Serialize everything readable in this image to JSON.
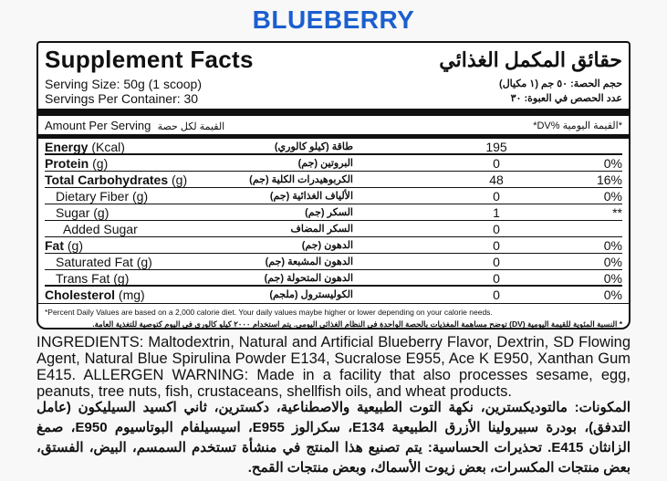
{
  "product_title": "BLUEBERRY",
  "colors": {
    "title": "#1b5fcf",
    "border": "#111111"
  },
  "panel": {
    "title_en": "Supplement Facts",
    "title_ar": "حقائق المكمل الغذائي",
    "serving_size_en": "Serving Size: 50g (1 scoop)",
    "serving_size_ar": "حجم الحصة: ٥٠ جم (١ مكيال)",
    "servings_en": "Servings Per Container: 30",
    "servings_ar": "عدد الحصص في العبوة: ٣٠",
    "amount_en": "Amount Per Serving",
    "amount_ar": "القيمة لكل حصة",
    "dv_header": "*القيمة اليومية %DV*",
    "rows": [
      {
        "name": "Energy",
        "unit": "(Kcal)",
        "ar": "طاقة (كيلو كالوري)",
        "value": "195",
        "dv": ""
      },
      {
        "name": "Protein",
        "unit": "(g)",
        "ar": "البروتين (جم)",
        "value": "0",
        "dv": "0%"
      },
      {
        "name": "Total Carbohydrates",
        "unit": "(g)",
        "ar": "الكربوهيدرات الكلية (جم)",
        "value": "48",
        "dv": "16%"
      },
      {
        "name": "Dietary Fiber (g)",
        "ar": "الألياف الغذائية (جم)",
        "value": "0",
        "dv": "0%"
      },
      {
        "name": "Sugar (g)",
        "ar": "السكر (جم)",
        "value": "1",
        "dv": "**"
      },
      {
        "name": "Added Sugar",
        "ar": "السكر المضاف",
        "value": "0",
        "dv": ""
      },
      {
        "name": "Fat",
        "unit": "(g)",
        "ar": "الدهون (جم)",
        "value": "0",
        "dv": "0%"
      },
      {
        "name": "Saturated Fat (g)",
        "ar": "الدهون المشبعة (جم)",
        "value": "0",
        "dv": "0%"
      },
      {
        "name": "Trans Fat (g)",
        "ar": "الدهون المتحولة (جم)",
        "value": "0",
        "dv": "0%"
      },
      {
        "name": "Cholesterol",
        "unit": "(mg)",
        "ar": "الكوليسترول (ملجم)",
        "value": "0",
        "dv": "0%"
      }
    ],
    "footnote_en": "*Percent Daily Values are based on a 2,000 calorie diet. Your daily values maybe higher or lower depending on your calorie needs.",
    "footnote_ar": "* النسبة المئوية للقيمة اليومية (DV) توضح مساهمة المغذيات بالحصة الواحدة في النظام الغذائي اليومي. يتم استخدام ٢٠٠٠ كيلو كالوري في اليوم كتوصية للتغذية العامة."
  },
  "ingredients_en": "INGREDIENTS: Maltodextrin, Natural and Artificial Blueberry Flavor, Dextrin, SD Flowing Agent, Natural Blue Spirulina Powder E134, Sucralose E955, Ace K E950, Xanthan Gum E415. ALLERGEN WARNING: Made in a facility that also processes sesame, egg, peanuts, tree nuts, fish, crustaceans, shellfish oils, and wheat products.",
  "ingredients_ar": "المكونات: مالتوديكسترين، نكهة التوت الطبيعية والاصطناعية، دكسترين، ثاني اكسيد السيليكون (عامل التدفق)، بودرة سبيرولينا الأزرق الطبيعية E134، سكرالوز E955، اسيسيلفام البوتاسيوم E950، صمغ الزانثان E415. تحذيرات الحساسية: يتم تصنيع هذا المنتج في منشأة تستخدم السمسم، البيض، الفستق، بعض منتجات المكسرات، بعض زيوت الأسماك، وبعض منتجات القمح."
}
